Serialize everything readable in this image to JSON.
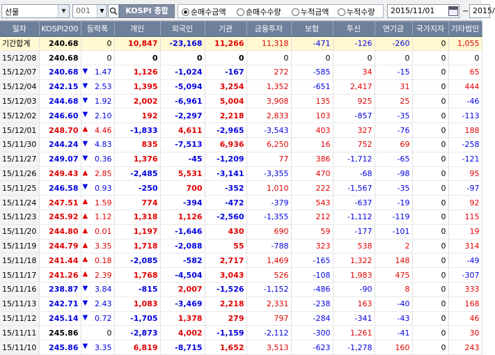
{
  "toolbar": {
    "market_select": "선물",
    "code_value": "001",
    "index_name": "KOSPI 종합",
    "radios": [
      {
        "label": "순매수금액",
        "checked": true
      },
      {
        "label": "순매수수량",
        "checked": false
      },
      {
        "label": "누적금액",
        "checked": false
      },
      {
        "label": "누적수량",
        "checked": false
      }
    ],
    "start_date": "2015/11/01",
    "tilde": "~",
    "end_date": "2015/"
  },
  "table": {
    "columns": [
      "일자",
      "KOSPI200",
      "등락폭",
      "개인",
      "외국인",
      "기관",
      "금융투자",
      "보험",
      "투신",
      "연기금",
      "국가지자",
      "기타법인"
    ],
    "rows": [
      {
        "date": "기간합계",
        "kospi": "240.68",
        "dir": "",
        "chg": "0",
        "indiv": "10,847",
        "foreign": "-23,168",
        "inst": "11,266",
        "fin": "11,318",
        "ins": "-471",
        "trust": "-126",
        "pension": "-260",
        "gov": "0",
        "etc": "1,055"
      },
      {
        "date": "15/12/08",
        "kospi": "240.68",
        "dir": "",
        "chg": "0",
        "indiv": "0",
        "foreign": "0",
        "inst": "0",
        "fin": "0",
        "ins": "0",
        "trust": "0",
        "pension": "0",
        "gov": "0",
        "etc": "0"
      },
      {
        "date": "15/12/07",
        "kospi": "240.68",
        "dir": "down",
        "chg": "1.47",
        "indiv": "1,126",
        "foreign": "-1,024",
        "inst": "-167",
        "fin": "272",
        "ins": "-585",
        "trust": "34",
        "pension": "-15",
        "gov": "0",
        "etc": "65"
      },
      {
        "date": "15/12/04",
        "kospi": "242.15",
        "dir": "down",
        "chg": "2.53",
        "indiv": "1,395",
        "foreign": "-5,094",
        "inst": "3,254",
        "fin": "1,352",
        "ins": "-651",
        "trust": "2,417",
        "pension": "31",
        "gov": "0",
        "etc": "444"
      },
      {
        "date": "15/12/03",
        "kospi": "244.68",
        "dir": "down",
        "chg": "1.92",
        "indiv": "2,002",
        "foreign": "-6,961",
        "inst": "5,004",
        "fin": "3,908",
        "ins": "135",
        "trust": "925",
        "pension": "25",
        "gov": "0",
        "etc": "-46"
      },
      {
        "date": "15/12/02",
        "kospi": "246.60",
        "dir": "down",
        "chg": "2.10",
        "indiv": "192",
        "foreign": "-2,297",
        "inst": "2,218",
        "fin": "2,833",
        "ins": "103",
        "trust": "-857",
        "pension": "-35",
        "gov": "0",
        "etc": "-113"
      },
      {
        "date": "15/12/01",
        "kospi": "248.70",
        "dir": "up",
        "chg": "4.46",
        "indiv": "-1,833",
        "foreign": "4,611",
        "inst": "-2,965",
        "fin": "-3,543",
        "ins": "403",
        "trust": "327",
        "pension": "-76",
        "gov": "0",
        "etc": "188"
      },
      {
        "date": "15/11/30",
        "kospi": "244.24",
        "dir": "down",
        "chg": "4.83",
        "indiv": "835",
        "foreign": "-7,513",
        "inst": "6,936",
        "fin": "6,250",
        "ins": "16",
        "trust": "752",
        "pension": "69",
        "gov": "0",
        "etc": "-258"
      },
      {
        "date": "15/11/27",
        "kospi": "249.07",
        "dir": "down",
        "chg": "0.36",
        "indiv": "1,376",
        "foreign": "-45",
        "inst": "-1,209",
        "fin": "77",
        "ins": "386",
        "trust": "-1,712",
        "pension": "-65",
        "gov": "0",
        "etc": "-121"
      },
      {
        "date": "15/11/26",
        "kospi": "249.43",
        "dir": "up",
        "chg": "2.85",
        "indiv": "-2,485",
        "foreign": "5,531",
        "inst": "-3,141",
        "fin": "-3,355",
        "ins": "470",
        "trust": "-68",
        "pension": "-98",
        "gov": "0",
        "etc": "95"
      },
      {
        "date": "15/11/25",
        "kospi": "246.58",
        "dir": "down",
        "chg": "0.93",
        "indiv": "-250",
        "foreign": "700",
        "inst": "-352",
        "fin": "1,010",
        "ins": "222",
        "trust": "-1,567",
        "pension": "-35",
        "gov": "0",
        "etc": "-97"
      },
      {
        "date": "15/11/24",
        "kospi": "247.51",
        "dir": "up",
        "chg": "1.59",
        "indiv": "774",
        "foreign": "-394",
        "inst": "-472",
        "fin": "-379",
        "ins": "543",
        "trust": "-637",
        "pension": "-19",
        "gov": "0",
        "etc": "92"
      },
      {
        "date": "15/11/23",
        "kospi": "245.92",
        "dir": "up",
        "chg": "1.12",
        "indiv": "1,318",
        "foreign": "1,126",
        "inst": "-2,560",
        "fin": "-1,355",
        "ins": "212",
        "trust": "-1,112",
        "pension": "-119",
        "gov": "0",
        "etc": "115"
      },
      {
        "date": "15/11/20",
        "kospi": "244.80",
        "dir": "up",
        "chg": "0.01",
        "indiv": "1,197",
        "foreign": "-1,646",
        "inst": "430",
        "fin": "690",
        "ins": "59",
        "trust": "-177",
        "pension": "-101",
        "gov": "0",
        "etc": "19"
      },
      {
        "date": "15/11/19",
        "kospi": "244.79",
        "dir": "up",
        "chg": "3.35",
        "indiv": "1,718",
        "foreign": "-2,088",
        "inst": "55",
        "fin": "-788",
        "ins": "323",
        "trust": "538",
        "pension": "2",
        "gov": "0",
        "etc": "314"
      },
      {
        "date": "15/11/18",
        "kospi": "241.44",
        "dir": "up",
        "chg": "0.18",
        "indiv": "-2,085",
        "foreign": "-582",
        "inst": "2,717",
        "fin": "1,469",
        "ins": "-165",
        "trust": "1,322",
        "pension": "148",
        "gov": "0",
        "etc": "-49"
      },
      {
        "date": "15/11/17",
        "kospi": "241.26",
        "dir": "up",
        "chg": "2.39",
        "indiv": "1,768",
        "foreign": "-4,504",
        "inst": "3,043",
        "fin": "526",
        "ins": "-108",
        "trust": "1,983",
        "pension": "475",
        "gov": "0",
        "etc": "-307"
      },
      {
        "date": "15/11/16",
        "kospi": "238.87",
        "dir": "down",
        "chg": "3.84",
        "indiv": "-815",
        "foreign": "2,007",
        "inst": "-1,526",
        "fin": "-1,152",
        "ins": "-486",
        "trust": "-90",
        "pension": "8",
        "gov": "0",
        "etc": "333"
      },
      {
        "date": "15/11/13",
        "kospi": "242.71",
        "dir": "down",
        "chg": "2.43",
        "indiv": "1,083",
        "foreign": "-3,469",
        "inst": "2,218",
        "fin": "2,331",
        "ins": "-238",
        "trust": "163",
        "pension": "-40",
        "gov": "0",
        "etc": "168"
      },
      {
        "date": "15/11/12",
        "kospi": "245.14",
        "dir": "down",
        "chg": "0.72",
        "indiv": "-1,705",
        "foreign": "1,378",
        "inst": "279",
        "fin": "797",
        "ins": "-284",
        "trust": "-341",
        "pension": "-43",
        "gov": "0",
        "etc": "46"
      },
      {
        "date": "15/11/11",
        "kospi": "245.86",
        "dir": "",
        "chg": "0",
        "indiv": "-2,873",
        "foreign": "4,002",
        "inst": "-1,159",
        "fin": "-2,112",
        "ins": "-300",
        "trust": "1,261",
        "pension": "-41",
        "gov": "0",
        "etc": "30"
      },
      {
        "date": "15/11/10",
        "kospi": "245.86",
        "dir": "down",
        "chg": "3.35",
        "indiv": "6,819",
        "foreign": "-8,715",
        "inst": "1,652",
        "fin": "3,513",
        "ins": "-623",
        "trust": "-1,278",
        "pension": "160",
        "gov": "0",
        "etc": "243"
      }
    ]
  },
  "colors": {
    "up": "#e00000",
    "down": "#0000e0",
    "header": "#6e7f9a"
  }
}
